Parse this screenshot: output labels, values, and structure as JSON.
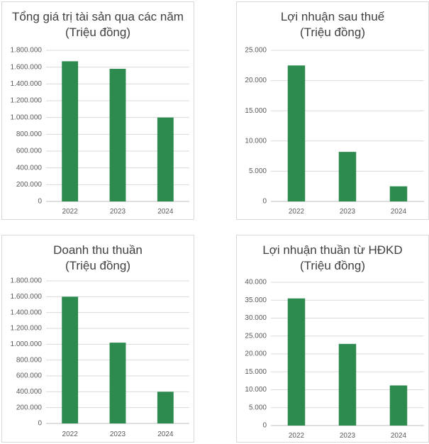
{
  "colors": {
    "bar": "#2e8b4f",
    "grid": "#d9d9d9",
    "text": "#404040"
  },
  "chart_data": [
    {
      "type": "bar",
      "title": "Tổng giá trị tài sản qua các năm",
      "subtitle": "(Triệu đồng)",
      "categories": [
        "2022",
        "2023",
        "2024"
      ],
      "values": [
        1670000,
        1580000,
        1000000
      ],
      "ylim": [
        0,
        1800000
      ],
      "yticks": [
        "0",
        "200.000",
        "400.000",
        "600.000",
        "800.000",
        "1.000.000",
        "1.200.000",
        "1.400.000",
        "1.600.000",
        "1.800.000"
      ],
      "grid": true
    },
    {
      "type": "bar",
      "title": "Lợi nhuận sau thuế",
      "subtitle": "(Triệu đồng)",
      "categories": [
        "2022",
        "2023",
        "2024"
      ],
      "values": [
        22500,
        8200,
        2500
      ],
      "ylim": [
        0,
        25000
      ],
      "yticks": [
        "0",
        "5.000",
        "10.000",
        "15.000",
        "20.000",
        "25.000"
      ],
      "grid": true
    },
    {
      "type": "bar",
      "title": "Doanh thu thuần",
      "subtitle": "(Triệu đồng)",
      "categories": [
        "2022",
        "2023",
        "2024"
      ],
      "values": [
        1600000,
        1020000,
        400000
      ],
      "ylim": [
        0,
        1800000
      ],
      "yticks": [
        "0",
        "200.000",
        "400.000",
        "600.000",
        "800.000",
        "1.000.000",
        "1.200.000",
        "1.400.000",
        "1.600.000",
        "1.800.000"
      ],
      "grid": true
    },
    {
      "type": "bar",
      "title": "Lợi nhuận thuần từ HĐKD",
      "subtitle": "(Triệu đồng)",
      "categories": [
        "2022",
        "2023",
        "2024"
      ],
      "values": [
        35500,
        22800,
        11200
      ],
      "ylim": [
        0,
        40000
      ],
      "yticks": [
        "0",
        "5.000",
        "10.000",
        "15.000",
        "20.000",
        "25.000",
        "30.000",
        "35.000",
        "40.000"
      ],
      "grid": true
    }
  ]
}
